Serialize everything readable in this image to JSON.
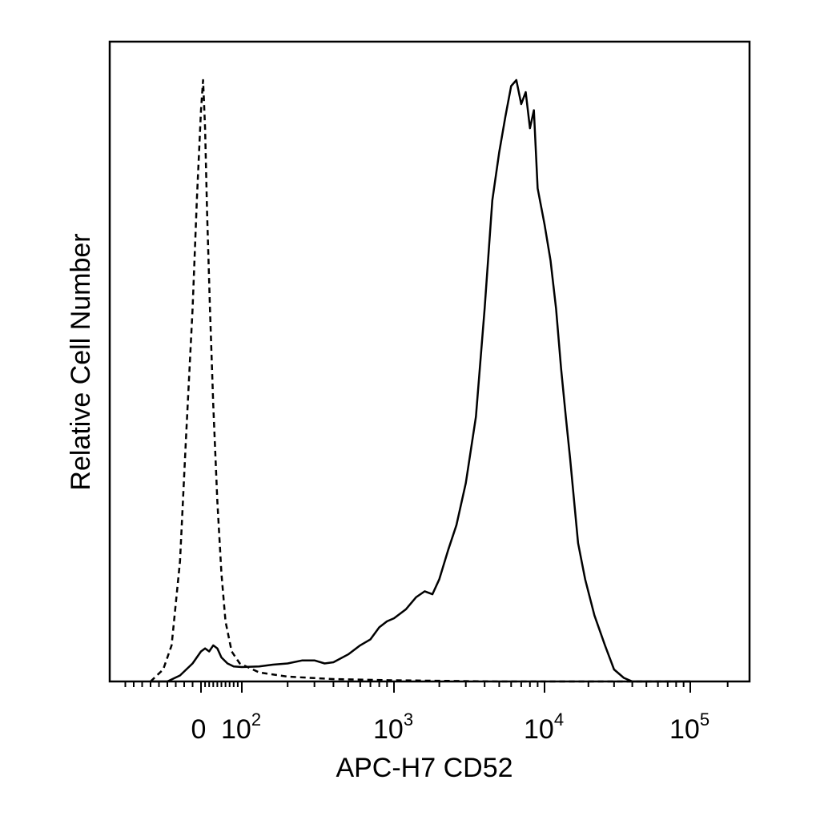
{
  "chart_data": {
    "type": "line",
    "xlabel": "APC-H7 CD52",
    "ylabel": "Relative Cell Number",
    "x_scale": "biexponential",
    "ylim": [
      0,
      1
    ],
    "grid": false,
    "x_ticks": [
      {
        "label": "0",
        "value": 0
      },
      {
        "label": "10",
        "exp": "2",
        "value": 100
      },
      {
        "label": "10",
        "exp": "3",
        "value": 1000
      },
      {
        "label": "10",
        "exp": "4",
        "value": 10000
      },
      {
        "label": "10",
        "exp": "5",
        "value": 100000
      }
    ],
    "series": [
      {
        "style": "dashed",
        "color": "#000000",
        "points": [
          [
            -60,
            0.0
          ],
          [
            -45,
            0.02
          ],
          [
            -35,
            0.06
          ],
          [
            -25,
            0.2
          ],
          [
            -18,
            0.4
          ],
          [
            -10,
            0.62
          ],
          [
            -5,
            0.8
          ],
          [
            0,
            0.95
          ],
          [
            5,
            1.0
          ],
          [
            10,
            0.92
          ],
          [
            15,
            0.78
          ],
          [
            22,
            0.62
          ],
          [
            30,
            0.46
          ],
          [
            40,
            0.3
          ],
          [
            50,
            0.18
          ],
          [
            60,
            0.1
          ],
          [
            75,
            0.05
          ],
          [
            95,
            0.03
          ],
          [
            130,
            0.015
          ],
          [
            200,
            0.008
          ],
          [
            400,
            0.004
          ],
          [
            1000,
            0.002
          ],
          [
            5000,
            0.0
          ],
          [
            100000,
            0.0
          ]
        ]
      },
      {
        "style": "solid",
        "color": "#000000",
        "points": [
          [
            -60,
            0.0
          ],
          [
            -40,
            0.0
          ],
          [
            -25,
            0.01
          ],
          [
            -10,
            0.03
          ],
          [
            0,
            0.05
          ],
          [
            10,
            0.055
          ],
          [
            20,
            0.05
          ],
          [
            30,
            0.06
          ],
          [
            40,
            0.055
          ],
          [
            50,
            0.04
          ],
          [
            65,
            0.03
          ],
          [
            80,
            0.025
          ],
          [
            100,
            0.024
          ],
          [
            130,
            0.025
          ],
          [
            160,
            0.028
          ],
          [
            200,
            0.03
          ],
          [
            250,
            0.035
          ],
          [
            300,
            0.035
          ],
          [
            350,
            0.03
          ],
          [
            400,
            0.032
          ],
          [
            500,
            0.045
          ],
          [
            600,
            0.06
          ],
          [
            700,
            0.07
          ],
          [
            800,
            0.09
          ],
          [
            900,
            0.1
          ],
          [
            1000,
            0.105
          ],
          [
            1200,
            0.12
          ],
          [
            1400,
            0.14
          ],
          [
            1600,
            0.15
          ],
          [
            1800,
            0.145
          ],
          [
            2000,
            0.17
          ],
          [
            2300,
            0.22
          ],
          [
            2600,
            0.26
          ],
          [
            3000,
            0.33
          ],
          [
            3500,
            0.44
          ],
          [
            4000,
            0.62
          ],
          [
            4500,
            0.8
          ],
          [
            5000,
            0.88
          ],
          [
            5500,
            0.94
          ],
          [
            6000,
            0.99
          ],
          [
            6500,
            1.0
          ],
          [
            7000,
            0.96
          ],
          [
            7500,
            0.98
          ],
          [
            8000,
            0.92
          ],
          [
            8500,
            0.95
          ],
          [
            9000,
            0.82
          ],
          [
            10000,
            0.76
          ],
          [
            11000,
            0.7
          ],
          [
            12000,
            0.62
          ],
          [
            13000,
            0.52
          ],
          [
            14000,
            0.44
          ],
          [
            15000,
            0.37
          ],
          [
            17000,
            0.23
          ],
          [
            19000,
            0.17
          ],
          [
            22000,
            0.11
          ],
          [
            26000,
            0.06
          ],
          [
            30000,
            0.02
          ],
          [
            35000,
            0.006
          ],
          [
            40000,
            0.0
          ],
          [
            100000,
            0.0
          ]
        ]
      }
    ]
  }
}
